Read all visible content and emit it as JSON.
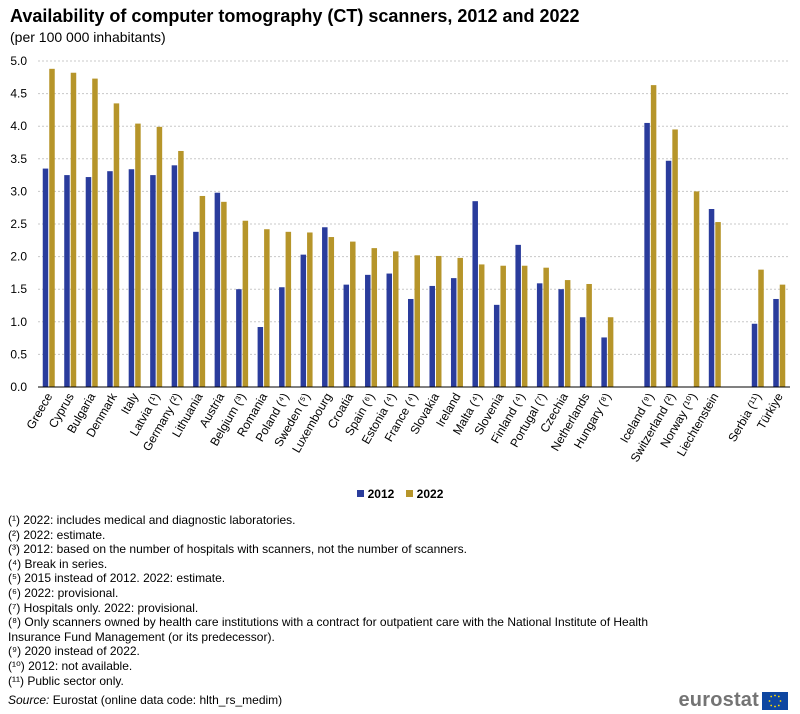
{
  "title": "Availability of computer tomography (CT) scanners, 2012 and 2022",
  "subtitle": "(per 100 000 inhabitants)",
  "colors": {
    "s2012": "#2a3c9c",
    "s2022": "#b6952a",
    "grid": "#c8c8c8",
    "axis": "#000000"
  },
  "chart_data": {
    "type": "bar",
    "title": "Availability of computer tomography (CT) scanners, 2012 and 2022",
    "subtitle": "(per 100 000 inhabitants)",
    "xlabel": "",
    "ylabel": "",
    "ylim": [
      0,
      5.0
    ],
    "yticks": [
      "0.0",
      "0.5",
      "1.0",
      "1.5",
      "2.0",
      "2.5",
      "3.0",
      "3.5",
      "4.0",
      "4.5",
      "5.0"
    ],
    "grid": true,
    "legend_position": "bottom",
    "categories": [
      "Greece",
      "Cyprus",
      "Bulgaria",
      "Denmark",
      "Italy",
      "Latvia (¹)",
      "Germany (²)",
      "Lithuania",
      "Austria",
      "Belgium (³)",
      "Romania",
      "Poland (⁴)",
      "Sweden (⁵)",
      "Luxembourg",
      "Croatia",
      "Spain (⁶)",
      "Estonia (⁴)",
      "France (⁴)",
      "Slovakia",
      "Ireland",
      "Malta (⁴)",
      "Slovenia",
      "Finland (⁴)",
      "Portugal (⁷)",
      "Czechia",
      "Netherlands",
      "Hungary (⁸)",
      "",
      "Iceland (⁹)",
      "Switzerland (²)",
      "Norway (¹⁰)",
      "Liechtenstein",
      "",
      "Serbia (¹¹)",
      "Türkiye"
    ],
    "series": [
      {
        "name": "2012",
        "values": [
          3.35,
          3.25,
          3.22,
          3.31,
          3.34,
          3.25,
          3.4,
          2.38,
          2.98,
          1.5,
          0.92,
          1.53,
          2.03,
          2.45,
          1.57,
          1.72,
          1.74,
          1.35,
          1.55,
          1.67,
          2.85,
          1.26,
          2.18,
          1.59,
          1.5,
          1.07,
          0.76,
          null,
          4.05,
          3.47,
          null,
          2.73,
          null,
          0.97,
          1.35
        ]
      },
      {
        "name": "2022",
        "values": [
          4.88,
          4.82,
          4.73,
          4.35,
          4.04,
          3.99,
          3.62,
          2.93,
          2.84,
          2.55,
          2.42,
          2.38,
          2.37,
          2.3,
          2.23,
          2.13,
          2.08,
          2.02,
          2.01,
          1.98,
          1.88,
          1.86,
          1.86,
          1.83,
          1.64,
          1.58,
          1.07,
          null,
          4.63,
          3.95,
          3.0,
          2.53,
          null,
          1.8,
          1.57
        ]
      }
    ]
  },
  "legend": {
    "s2012": "2012",
    "s2022": "2022"
  },
  "footnotes": [
    "(¹) 2022: includes medical and diagnostic laboratories.",
    "(²) 2022: estimate.",
    "(³) 2012: based on the number of hospitals with scanners, not the number of scanners.",
    "(⁴) Break in series.",
    "(⁵) 2015 instead of 2012. 2022: estimate.",
    "(⁶) 2022: provisional.",
    "(⁷) Hospitals only. 2022: provisional.",
    "(⁸) Only scanners owned by health care institutions with a contract for outpatient care with the National Institute of Health Insurance Fund Management (or its predecessor).",
    "(⁹) 2020 instead of 2022.",
    "(¹⁰) 2012: not available.",
    "(¹¹) Public sector only."
  ],
  "source": {
    "label": "Source:",
    "text": "Eurostat (online data code: hlth_rs_medim)"
  },
  "logo": {
    "text": "eurostat",
    "icon": "eu-flag-icon"
  }
}
